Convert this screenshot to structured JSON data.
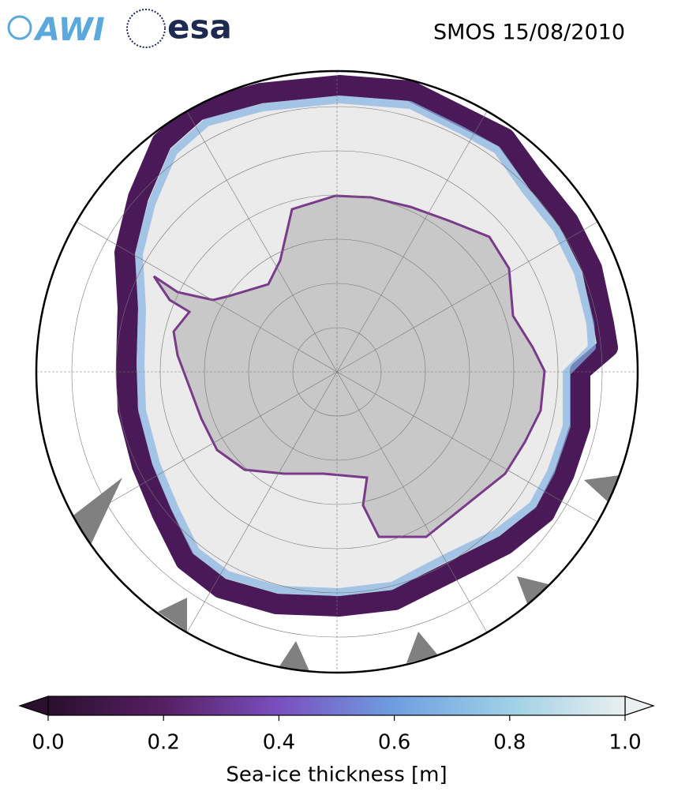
{
  "header": {
    "logos": [
      "AWI",
      "esa"
    ],
    "title": "SMOS 15/08/2010"
  },
  "colorbar": {
    "label": "Sea-ice thickness [m]",
    "lim": [
      0,
      1
    ],
    "ticks": [
      {
        "value": 0,
        "label": "0.0"
      },
      0.2,
      0.4,
      0.6,
      0.8,
      {
        "value": 1,
        "label": "1.0"
      }
    ],
    "colormap": [
      "#2a0f2e",
      "#561f62",
      "#7a4fc0",
      "#6f9ee0",
      "#9fd0e6",
      "#e9f0ef"
    ]
  }
}
